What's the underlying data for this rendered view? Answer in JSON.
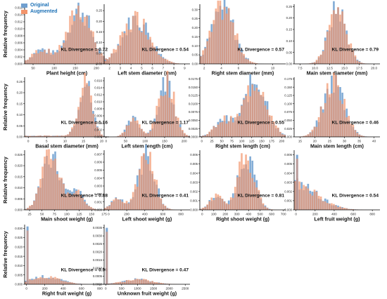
{
  "figure": {
    "y_axis_label": "Relative frequency",
    "legend": {
      "items": [
        {
          "label": "Original",
          "color": "#6f9fcf"
        },
        {
          "label": "Augmented",
          "color": "#f2946b"
        }
      ]
    }
  },
  "colors": {
    "original": "#6f9fcf",
    "augmented": "#f2946b",
    "overlap": "#c08a7e",
    "axis": "#000000"
  },
  "chart_data": [
    {
      "type": "bar",
      "title": "",
      "xlabel": "Plant height (cm)",
      "annotation": "KL Divergence = 0.72",
      "x_ticks": [
        50,
        100,
        150,
        200
      ],
      "y_ticks": [
        0.0,
        0.002,
        0.004,
        0.006,
        0.008,
        0.01,
        0.012,
        0.014,
        0.016
      ],
      "xlim": [
        30,
        230
      ],
      "ylim": [
        0,
        0.017
      ],
      "peak_x": 160,
      "spread": 28,
      "peak_y": 0.0155,
      "secondary_peak": [
        70,
        0.004
      ]
    },
    {
      "type": "bar",
      "title": "",
      "xlabel": "Left stem diameter (mm)",
      "annotation": "KL Divergence = 0.54",
      "x_ticks": [
        2,
        3,
        4,
        5,
        6,
        7,
        8,
        9
      ],
      "y_ticks": [
        0.0,
        0.05,
        0.1,
        0.15,
        0.2,
        0.25
      ],
      "xlim": [
        1.5,
        9.5
      ],
      "ylim": [
        0,
        0.28
      ],
      "peak_x": 4.5,
      "spread": 1.3,
      "peak_y": 0.21
    },
    {
      "type": "bar",
      "title": "",
      "xlabel": "Right stem diameter (mm)",
      "annotation": "KL Divergence = 0.57",
      "x_ticks": [
        2,
        4,
        6,
        8,
        10
      ],
      "y_ticks": [
        0.0,
        0.05,
        0.1,
        0.15,
        0.2,
        0.25,
        0.3
      ],
      "xlim": [
        1.5,
        11.5
      ],
      "ylim": [
        0,
        0.33
      ],
      "peak_x": 4.2,
      "spread": 1.3,
      "peak_y": 0.31
    },
    {
      "type": "bar",
      "title": "",
      "xlabel": "Main stem diameter (mm)",
      "annotation": "KL Divergence = 0.79",
      "x_ticks": [
        7.5,
        10.0,
        12.5,
        15.0,
        17.5,
        20.0
      ],
      "y_ticks": [
        0.0,
        0.05,
        0.1,
        0.15,
        0.2,
        0.25
      ],
      "xlim": [
        6.5,
        21
      ],
      "ylim": [
        0,
        0.26
      ],
      "peak_x": 13.8,
      "spread": 1.5,
      "peak_y": 0.24
    },
    {
      "type": "bar",
      "title": "",
      "xlabel": "Basal stem diameter (mm)",
      "annotation": "KL Divergence = 1.16",
      "x_ticks": [
        0,
        5,
        10,
        15,
        20
      ],
      "y_ticks": [
        0.0,
        0.05,
        0.1,
        0.15,
        0.2,
        0.25
      ],
      "xlim": [
        -1,
        22
      ],
      "ylim": [
        0,
        0.27
      ],
      "peak_x": 15.5,
      "spread": 1.8,
      "peak_y": 0.25,
      "tail_level": 0.01
    },
    {
      "type": "bar",
      "title": "",
      "xlabel": "Left stem length (cm)",
      "annotation": "KL Divergence = 1.17",
      "x_ticks": [
        0,
        50,
        100,
        150,
        200
      ],
      "y_ticks": [
        0.0,
        0.002,
        0.004,
        0.006,
        0.008,
        0.01,
        0.012,
        0.014,
        0.016
      ],
      "xlim": [
        -5,
        215
      ],
      "ylim": [
        0,
        0.017
      ],
      "peak_x": 155,
      "spread": 20,
      "peak_y": 0.016,
      "secondary_peak": [
        70,
        0.005
      ]
    },
    {
      "type": "bar",
      "title": "",
      "xlabel": "Right stem length (cm)",
      "annotation": "KL Divergence = 0.55",
      "x_ticks": [
        0,
        25,
        50,
        75,
        100,
        125,
        150,
        175,
        200
      ],
      "y_ticks": [
        0.0,
        0.0025,
        0.005,
        0.0075,
        0.01,
        0.0125,
        0.015,
        0.0175
      ],
      "xlim": [
        -5,
        210
      ],
      "ylim": [
        0,
        0.018
      ],
      "peak_x": 135,
      "spread": 28,
      "peak_y": 0.017,
      "secondary_peak": [
        55,
        0.005
      ]
    },
    {
      "type": "bar",
      "title": "",
      "xlabel": "Main stem length (cm)",
      "annotation": "KL Divergence = 0.46",
      "x_ticks": [
        15,
        20,
        25,
        30,
        35,
        40
      ],
      "y_ticks": [
        0.0,
        0.025,
        0.05,
        0.075,
        0.1,
        0.125,
        0.15,
        0.175
      ],
      "xlim": [
        13,
        42
      ],
      "ylim": [
        0,
        0.18
      ],
      "peak_x": 26.5,
      "spread": 3.5,
      "peak_y": 0.165
    },
    {
      "type": "bar",
      "title": "",
      "xlabel": "Main shoot weight (g)",
      "annotation": "KL Divergence = 0.88",
      "x_ticks": [
        25,
        50,
        75,
        100,
        125,
        150,
        175
      ],
      "y_ticks": [
        0.0,
        0.005,
        0.01,
        0.015,
        0.02,
        0.025
      ],
      "xlim": [
        15,
        185
      ],
      "ylim": [
        0,
        0.027
      ],
      "peak_x": 68,
      "spread": 18,
      "peak_y": 0.025,
      "secondary_peak": [
        120,
        0.008
      ]
    },
    {
      "type": "bar",
      "title": "",
      "xlabel": "Left shoot weight (g)",
      "annotation": "KL Divergence = 0.41",
      "x_ticks": [
        0,
        200,
        400,
        600,
        800
      ],
      "y_ticks": [
        0.0,
        0.001,
        0.002,
        0.003,
        0.004,
        0.005,
        0.006,
        0.007
      ],
      "xlim": [
        -50,
        900
      ],
      "ylim": [
        0,
        0.0075
      ],
      "peak_x": 420,
      "spread": 90,
      "peak_y": 0.0068,
      "secondary_peak": [
        100,
        0.0015
      ]
    },
    {
      "type": "bar",
      "title": "",
      "xlabel": "Right shoot weight (g)",
      "annotation": "KL Divergence = 0.81",
      "x_ticks": [
        0,
        100,
        200,
        300,
        400,
        500,
        600,
        700
      ],
      "y_ticks": [
        0.0,
        0.001,
        0.002,
        0.003,
        0.004,
        0.005,
        0.006
      ],
      "xlim": [
        -20,
        720
      ],
      "ylim": [
        0,
        0.0065
      ],
      "peak_x": 380,
      "spread": 70,
      "peak_y": 0.006,
      "secondary_peak": [
        120,
        0.0015
      ]
    },
    {
      "type": "bar",
      "title": "",
      "xlabel": "Left fruit weight (g)",
      "annotation": "KL Divergence = 0.54",
      "x_ticks": [
        0,
        200,
        400,
        600,
        800
      ],
      "y_ticks": [
        0.0,
        0.001,
        0.002,
        0.003,
        0.004,
        0.005,
        0.006
      ],
      "xlim": [
        -20,
        880
      ],
      "ylim": [
        0,
        0.0065
      ],
      "peak_x": 0,
      "spread": 220,
      "peak_y": 0.0028,
      "spike": [
        0,
        0.006
      ]
    },
    {
      "type": "bar",
      "title": "",
      "xlabel": "Right fruit weight (g)",
      "annotation": "KL Divergence = 0.90",
      "x_ticks": [
        0,
        200,
        400,
        600,
        800
      ],
      "y_ticks": [
        0.0,
        0.005,
        0.01,
        0.015,
        0.02,
        0.025,
        0.03
      ],
      "xlim": [
        -20,
        900
      ],
      "ylim": [
        0,
        0.032
      ],
      "peak_x": 200,
      "spread": 170,
      "peak_y": 0.004,
      "spike": [
        0,
        0.031
      ]
    },
    {
      "type": "bar",
      "title": "",
      "xlabel": "Unknown fruit weight (g)",
      "annotation": "KL Divergence = 0.47",
      "x_ticks": [
        0,
        500,
        1000,
        1500,
        2000,
        2500
      ],
      "y_ticks": [
        0.0,
        0.0005,
        0.001,
        0.0015,
        0.002,
        0.0025,
        0.003,
        0.0035
      ],
      "xlim": [
        -50,
        2650
      ],
      "ylim": [
        0,
        0.0037
      ],
      "peak_x": 1000,
      "spread": 450,
      "peak_y": 0.0003,
      "spike": [
        0,
        0.0035
      ]
    }
  ]
}
